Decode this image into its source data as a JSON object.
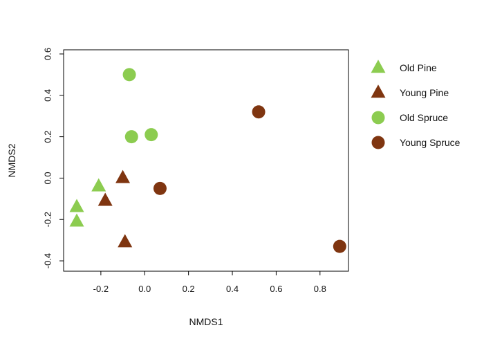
{
  "chart_data": {
    "type": "scatter",
    "title": "",
    "xlabel": "NMDS1",
    "ylabel": "NMDS2",
    "xlim": [
      -0.37,
      0.93
    ],
    "ylim": [
      -0.45,
      0.62
    ],
    "xticks": [
      -0.2,
      0.0,
      0.2,
      0.4,
      0.6,
      0.8
    ],
    "xtick_labels": [
      "-0.2",
      "0.0",
      "0.2",
      "0.4",
      "0.6",
      "0.8"
    ],
    "yticks": [
      -0.4,
      -0.2,
      0.0,
      0.2,
      0.4,
      0.6
    ],
    "ytick_labels": [
      "-0.4",
      "-0.2",
      "0.0",
      "0.2",
      "0.4",
      "0.6"
    ],
    "grid": false,
    "legend_position": "right",
    "series": [
      {
        "name": "Old Pine",
        "marker": "triangle",
        "color": "#8ccc50",
        "x": [
          -0.21,
          -0.31,
          -0.31
        ],
        "y": [
          -0.04,
          -0.14,
          -0.21
        ]
      },
      {
        "name": "Young Pine",
        "marker": "triangle",
        "color": "#7f3510",
        "x": [
          -0.1,
          -0.18,
          -0.09
        ],
        "y": [
          0.0,
          -0.11,
          -0.31
        ]
      },
      {
        "name": "Old Spruce",
        "marker": "circle",
        "color": "#8ccc50",
        "x": [
          -0.07,
          -0.06,
          0.03
        ],
        "y": [
          0.5,
          0.2,
          0.21
        ]
      },
      {
        "name": "Young Spruce",
        "marker": "circle",
        "color": "#7f3510",
        "x": [
          0.07,
          0.52,
          0.89
        ],
        "y": [
          -0.05,
          0.32,
          -0.33
        ]
      }
    ]
  }
}
